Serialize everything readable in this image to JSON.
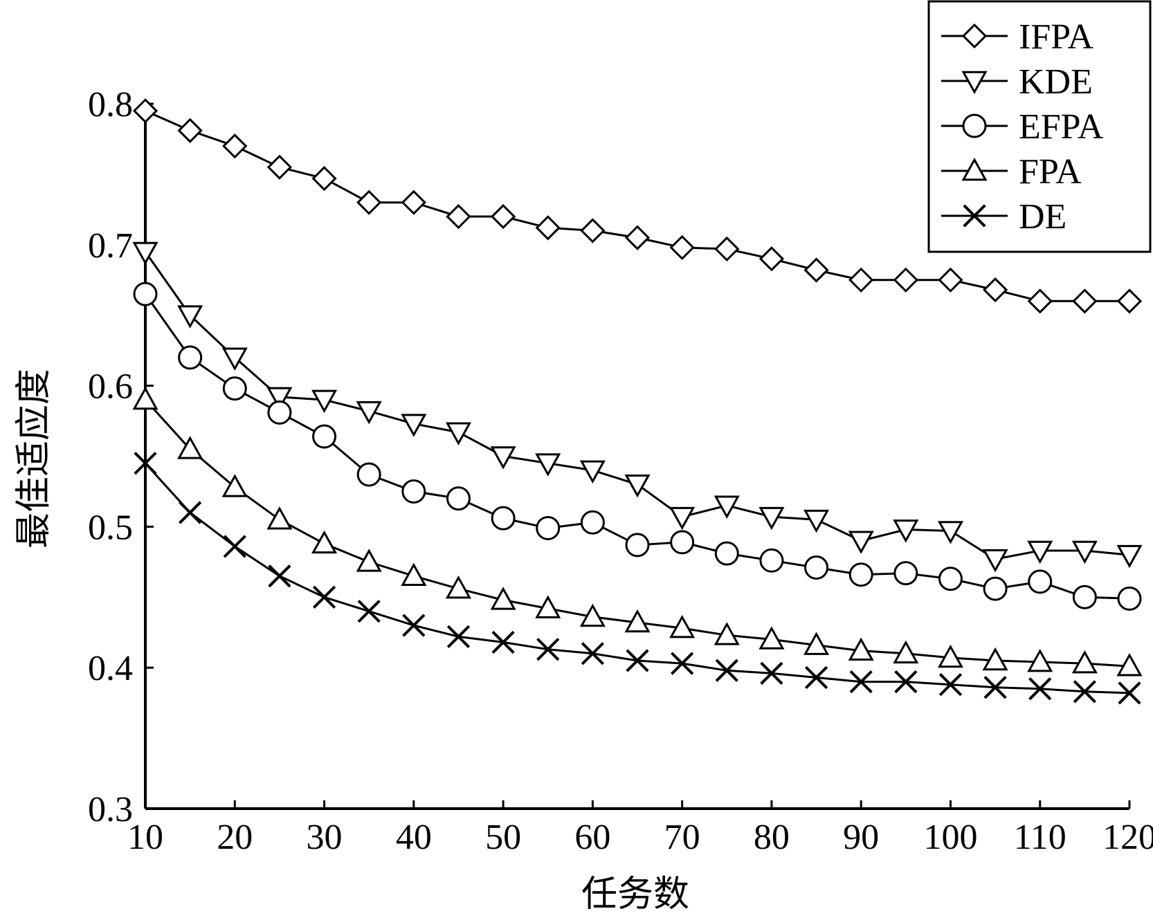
{
  "chart_data": {
    "type": "line",
    "xlabel": "任务数",
    "ylabel": "最佳适应度",
    "xlim": [
      10,
      120
    ],
    "ylim": [
      0.3,
      0.8
    ],
    "x_ticks": [
      10,
      20,
      30,
      40,
      50,
      60,
      70,
      80,
      90,
      100,
      110,
      120
    ],
    "x_tick_labels": [
      "10",
      "20",
      "30",
      "40",
      "50",
      "60",
      "70",
      "80",
      "90",
      "100",
      "110",
      "120"
    ],
    "y_ticks": [
      0.3,
      0.4,
      0.5,
      0.6,
      0.7,
      0.8
    ],
    "y_tick_labels": [
      "0.3",
      "0.4",
      "0.5",
      "0.6",
      "0.7",
      "0.8"
    ],
    "grid": false,
    "legend_position": "top-right",
    "x": [
      10,
      15,
      20,
      25,
      30,
      35,
      40,
      45,
      50,
      55,
      60,
      65,
      70,
      75,
      80,
      85,
      90,
      95,
      100,
      105,
      110,
      115,
      120
    ],
    "series": [
      {
        "name": "IFPA",
        "marker": "diamond",
        "values": [
          0.795,
          0.781,
          0.77,
          0.755,
          0.747,
          0.73,
          0.73,
          0.72,
          0.72,
          0.712,
          0.71,
          0.705,
          0.698,
          0.697,
          0.69,
          0.682,
          0.675,
          0.675,
          0.675,
          0.668,
          0.66,
          0.66,
          0.66
        ]
      },
      {
        "name": "KDE",
        "marker": "triangle-down",
        "values": [
          0.695,
          0.65,
          0.62,
          0.592,
          0.59,
          0.582,
          0.573,
          0.567,
          0.55,
          0.545,
          0.54,
          0.53,
          0.507,
          0.515,
          0.507,
          0.505,
          0.49,
          0.498,
          0.497,
          0.477,
          0.483,
          0.483,
          0.48
        ]
      },
      {
        "name": "EFPA",
        "marker": "circle",
        "values": [
          0.665,
          0.62,
          0.598,
          0.581,
          0.564,
          0.537,
          0.525,
          0.52,
          0.506,
          0.499,
          0.503,
          0.487,
          0.489,
          0.481,
          0.476,
          0.471,
          0.466,
          0.467,
          0.463,
          0.456,
          0.461,
          0.45,
          0.449
        ]
      },
      {
        "name": "FPA",
        "marker": "triangle-up",
        "values": [
          0.59,
          0.555,
          0.528,
          0.505,
          0.488,
          0.475,
          0.465,
          0.456,
          0.448,
          0.442,
          0.436,
          0.432,
          0.428,
          0.423,
          0.42,
          0.416,
          0.412,
          0.41,
          0.407,
          0.405,
          0.404,
          0.403,
          0.401
        ]
      },
      {
        "name": "DE",
        "marker": "x",
        "values": [
          0.545,
          0.51,
          0.486,
          0.465,
          0.45,
          0.44,
          0.43,
          0.422,
          0.418,
          0.413,
          0.41,
          0.405,
          0.403,
          0.398,
          0.396,
          0.393,
          0.39,
          0.39,
          0.388,
          0.386,
          0.385,
          0.383,
          0.382
        ]
      }
    ]
  }
}
